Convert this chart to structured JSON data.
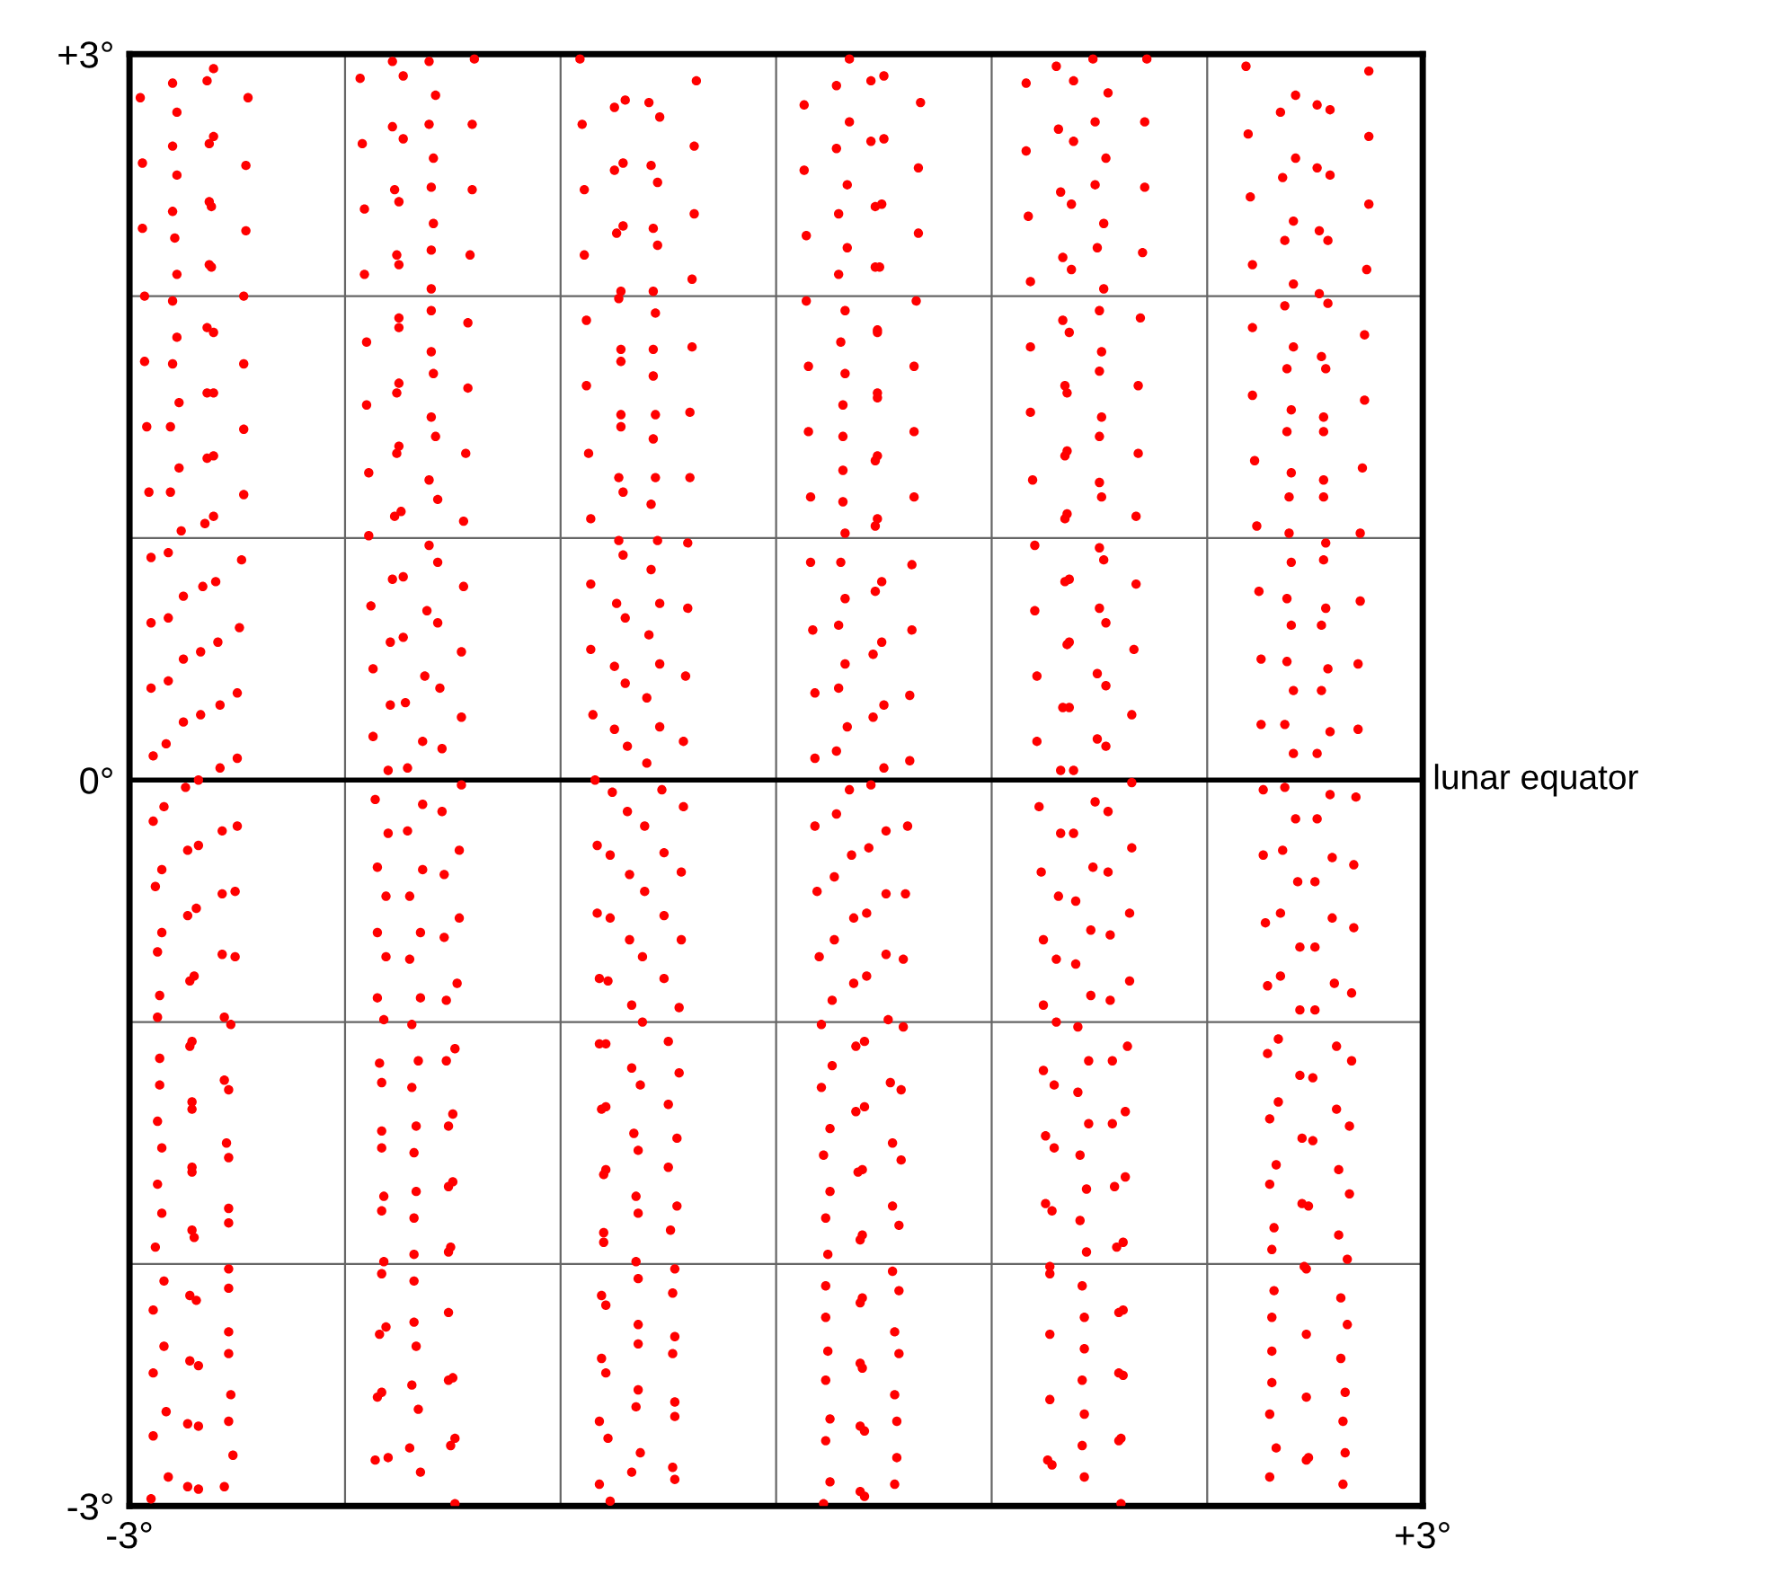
{
  "chart_data": {
    "type": "scatter",
    "marker": "circle",
    "grid": true,
    "xlim": [
      -3,
      3
    ],
    "ylim": [
      -3,
      3
    ],
    "xticks": [
      {
        "value": -3,
        "label": "-3°"
      },
      {
        "value": -2,
        "label": null
      },
      {
        "value": -1,
        "label": null
      },
      {
        "value": 0,
        "label": null
      },
      {
        "value": 1,
        "label": null
      },
      {
        "value": 2,
        "label": null
      },
      {
        "value": 3,
        "label": "+3°"
      }
    ],
    "yticks": [
      {
        "value": -3,
        "label": "-3°"
      },
      {
        "value": -2,
        "label": null
      },
      {
        "value": -1,
        "label": null
      },
      {
        "value": 0,
        "label": "0°"
      },
      {
        "value": 1,
        "label": null
      },
      {
        "value": 2,
        "label": null
      },
      {
        "value": 3,
        "label": "+3°"
      }
    ],
    "ref_lines": [
      {
        "axis": "y",
        "value": 0,
        "label": "lunar equator",
        "color": "#000000"
      }
    ],
    "series": [
      {
        "color": "#ff0000",
        "x": [
          -2.61,
          -2.64,
          -2.8,
          -2.95,
          -2.45,
          -2.78,
          -2.61,
          -2.63,
          -2.8,
          -2.94,
          -2.46,
          -2.78,
          -2.63,
          -2.62,
          -2.8,
          -2.94,
          -2.46,
          -2.79,
          -2.63,
          -2.62,
          -2.78,
          -2.93,
          -2.47,
          -2.8,
          -2.64,
          -2.61,
          -2.78,
          -2.93,
          -2.8,
          -2.47,
          -2.64,
          -2.61,
          -2.77,
          -2.92,
          -2.81,
          -2.47,
          -2.61,
          -2.64,
          -2.77,
          -2.91,
          -2.81,
          -2.47,
          -2.61,
          -2.65,
          -2.76,
          -2.82,
          -2.9,
          -2.48,
          -2.6,
          -2.66,
          -2.75,
          -2.82,
          -2.9,
          -2.49,
          -2.59,
          -2.67,
          -2.75,
          -2.82,
          -2.9,
          -2.5,
          -2.58,
          -2.67,
          -2.75,
          -2.83,
          -2.89,
          -2.5,
          -2.58,
          -2.68,
          -2.74,
          -2.84,
          -2.89,
          -2.5,
          -2.57,
          -2.68,
          -2.73,
          -2.85,
          -2.88,
          -2.57,
          -2.51,
          -2.69,
          -2.73,
          -2.85,
          -2.87,
          -2.57,
          -2.51,
          -2.7,
          -2.72,
          -2.86,
          -2.87,
          -2.56,
          -2.53,
          -2.71,
          -2.72,
          -2.86,
          -2.56,
          -2.86,
          -2.54,
          -2.71,
          -2.71,
          -2.87,
          -2.55,
          -2.85,
          -2.54,
          -2.71,
          -2.71,
          -2.87,
          -2.54,
          -2.85,
          -2.54,
          -2.71,
          -2.7,
          -2.88,
          -2.54,
          -2.84,
          -2.54,
          -2.72,
          -2.69,
          -2.89,
          -2.54,
          -2.84,
          -2.54,
          -2.72,
          -2.68,
          -2.89,
          -2.53,
          -2.83,
          -2.54,
          -2.73,
          -2.68,
          -2.89,
          -2.52,
          -2.82,
          -2.73,
          -2.68,
          -2.56,
          -2.9
        ],
        "values": [
          2.94,
          2.89,
          2.88,
          2.82,
          2.82,
          2.76,
          2.66,
          2.63,
          2.62,
          2.55,
          2.54,
          2.5,
          2.39,
          2.37,
          2.35,
          2.28,
          2.27,
          2.24,
          2.13,
          2.12,
          2.09,
          2.0,
          2.0,
          1.98,
          1.87,
          1.85,
          1.83,
          1.73,
          1.72,
          1.72,
          1.6,
          1.6,
          1.56,
          1.46,
          1.46,
          1.45,
          1.34,
          1.33,
          1.29,
          1.19,
          1.19,
          1.18,
          1.09,
          1.06,
          1.03,
          0.94,
          0.92,
          0.91,
          0.82,
          0.8,
          0.76,
          0.67,
          0.65,
          0.63,
          0.57,
          0.53,
          0.5,
          0.41,
          0.38,
          0.36,
          0.31,
          0.27,
          0.24,
          0.15,
          0.1,
          0.09,
          0.05,
          0.0,
          -0.03,
          -0.11,
          -0.17,
          -0.19,
          -0.21,
          -0.27,
          -0.29,
          -0.37,
          -0.44,
          -0.47,
          -0.46,
          -0.53,
          -0.56,
          -0.63,
          -0.71,
          -0.72,
          -0.73,
          -0.81,
          -0.83,
          -0.89,
          -0.98,
          -0.98,
          -1.01,
          -1.08,
          -1.1,
          -1.15,
          -1.24,
          -1.26,
          -1.28,
          -1.33,
          -1.36,
          -1.41,
          -1.5,
          -1.52,
          -1.56,
          -1.6,
          -1.62,
          -1.67,
          -1.77,
          -1.79,
          -1.83,
          -1.86,
          -1.89,
          -1.93,
          -2.02,
          -2.07,
          -2.1,
          -2.13,
          -2.15,
          -2.19,
          -2.28,
          -2.34,
          -2.37,
          -2.4,
          -2.42,
          -2.45,
          -2.54,
          -2.61,
          -2.65,
          -2.66,
          -2.67,
          -2.71,
          -2.79,
          -2.88,
          -2.92,
          -2.93,
          -2.92,
          -2.97
        ]
      },
      {
        "color": "#ff0000",
        "x": [
          -1.78,
          -1.61,
          -1.4,
          -1.93,
          -1.73,
          -1.58,
          -1.78,
          -1.61,
          -1.41,
          -1.73,
          -1.92,
          -1.59,
          -1.77,
          -1.6,
          -1.41,
          -1.75,
          -1.91,
          -1.59,
          -1.76,
          -1.6,
          -1.42,
          -1.75,
          -1.91,
          -1.6,
          -1.75,
          -1.6,
          -1.43,
          -1.75,
          -1.9,
          -1.6,
          -1.59,
          -1.75,
          -1.76,
          -1.43,
          -1.9,
          -1.6,
          -1.58,
          -1.75,
          -1.76,
          -1.44,
          -1.89,
          -1.61,
          -1.57,
          -1.74,
          -1.77,
          -1.45,
          -1.89,
          -1.61,
          -1.57,
          -1.73,
          -1.78,
          -1.45,
          -1.88,
          -1.62,
          -1.57,
          -1.73,
          -1.79,
          -1.46,
          -1.87,
          -1.63,
          -1.56,
          -1.72,
          -1.79,
          -1.46,
          -1.87,
          -1.64,
          -1.55,
          -1.71,
          -1.8,
          -1.46,
          -1.86,
          -1.64,
          -1.55,
          -1.8,
          -1.71,
          -1.47,
          -1.85,
          -1.64,
          -1.54,
          -1.81,
          -1.7,
          -1.47,
          -1.85,
          -1.65,
          -1.54,
          -1.81,
          -1.7,
          -1.48,
          -1.85,
          -1.65,
          -1.53,
          -1.82,
          -1.69,
          -1.49,
          -1.53,
          -1.66,
          -1.84,
          -1.83,
          -1.69,
          -1.5,
          -1.52,
          -1.67,
          -1.83,
          -1.83,
          -1.68,
          -1.5,
          -1.52,
          -1.67,
          -1.82,
          -1.83,
          -1.68,
          -1.51,
          -1.52,
          -1.68,
          -1.82,
          -1.83,
          -1.68,
          -1.52,
          -1.68,
          -1.81,
          -1.84,
          -1.67,
          -1.5,
          -1.52,
          -1.69,
          -1.83,
          -1.85,
          -1.66,
          -1.49,
          -1.51,
          -1.7,
          -1.8,
          -1.86,
          -1.65,
          -1.49
        ],
        "values": [
          2.97,
          2.97,
          2.98,
          2.9,
          2.91,
          2.83,
          2.7,
          2.71,
          2.71,
          2.65,
          2.63,
          2.57,
          2.44,
          2.45,
          2.44,
          2.39,
          2.36,
          2.3,
          2.17,
          2.19,
          2.17,
          2.13,
          2.09,
          2.03,
          1.91,
          1.94,
          1.89,
          1.87,
          1.81,
          1.77,
          1.68,
          1.64,
          1.6,
          1.62,
          1.55,
          1.5,
          1.42,
          1.38,
          1.35,
          1.35,
          1.27,
          1.24,
          1.16,
          1.11,
          1.09,
          1.07,
          1.01,
          0.97,
          0.9,
          0.84,
          0.83,
          0.8,
          0.72,
          0.7,
          0.65,
          0.59,
          0.57,
          0.53,
          0.46,
          0.43,
          0.38,
          0.32,
          0.31,
          0.26,
          0.18,
          0.16,
          0.13,
          0.05,
          0.04,
          -0.02,
          -0.08,
          -0.1,
          -0.13,
          -0.22,
          -0.21,
          -0.29,
          -0.36,
          -0.37,
          -0.39,
          -0.48,
          -0.48,
          -0.57,
          -0.63,
          -0.63,
          -0.65,
          -0.73,
          -0.74,
          -0.84,
          -0.9,
          -0.9,
          -0.91,
          -0.99,
          -1.01,
          -1.11,
          -1.16,
          -1.16,
          -1.17,
          -1.25,
          -1.27,
          -1.38,
          -1.43,
          -1.43,
          -1.45,
          -1.52,
          -1.54,
          -1.66,
          -1.68,
          -1.7,
          -1.72,
          -1.78,
          -1.81,
          -1.93,
          -1.95,
          -1.96,
          -1.99,
          -2.04,
          -2.07,
          -2.2,
          -2.24,
          -2.26,
          -2.29,
          -2.34,
          -2.47,
          -2.48,
          -2.5,
          -2.53,
          -2.55,
          -2.6,
          -2.72,
          -2.75,
          -2.76,
          -2.8,
          -2.81,
          -2.86,
          -2.99
        ]
      },
      {
        "color": "#ff0000",
        "x": [
          -0.91,
          -0.37,
          -0.7,
          -0.75,
          -0.59,
          -0.54,
          -0.9,
          -0.38,
          -0.71,
          -0.75,
          -0.58,
          -0.55,
          -0.89,
          -0.38,
          -0.71,
          -0.74,
          -0.57,
          -0.55,
          -0.89,
          -0.39,
          -0.72,
          -0.73,
          -0.57,
          -0.56,
          -0.88,
          -0.39,
          -0.72,
          -0.72,
          -0.57,
          -0.57,
          -0.88,
          -0.4,
          -0.72,
          -0.72,
          -0.56,
          -0.57,
          -0.87,
          -0.4,
          -0.73,
          -0.71,
          -0.56,
          -0.58,
          -0.86,
          -0.73,
          -0.55,
          -0.41,
          -0.71,
          -0.58,
          -0.86,
          -0.74,
          -0.54,
          -0.41,
          -0.7,
          -0.59,
          -0.86,
          -0.75,
          -0.54,
          -0.42,
          -0.7,
          -0.6,
          -0.85,
          -0.75,
          -0.54,
          -0.43,
          -0.69,
          -0.6,
          -0.84,
          -0.76,
          -0.53,
          -0.43,
          -0.69,
          -0.61,
          -0.83,
          -0.77,
          -0.52,
          -0.44,
          -0.68,
          -0.61,
          -0.83,
          -0.52,
          -0.77,
          -0.68,
          -0.44,
          -0.62,
          -0.82,
          -0.78,
          -0.52,
          -0.67,
          -0.45,
          -0.62,
          -0.82,
          -0.79,
          -0.5,
          -0.67,
          -0.45,
          -0.63,
          -0.81,
          -0.79,
          -0.5,
          -0.66,
          -0.46,
          -0.64,
          -0.79,
          -0.8,
          -0.5,
          -0.65,
          -0.46,
          -0.64,
          -0.8,
          -0.8,
          -0.49,
          -0.65,
          -0.47,
          -0.64,
          -0.48,
          -0.81,
          -0.79,
          -0.64,
          -0.47,
          -0.64,
          -0.48,
          -0.81,
          -0.79,
          -0.64,
          -0.47,
          -0.65,
          -0.47,
          -0.82,
          -0.78,
          -0.63,
          -0.48,
          -0.67,
          -0.47,
          -0.82,
          -0.77
        ],
        "values": [
          2.98,
          2.89,
          2.81,
          2.78,
          2.8,
          2.74,
          2.71,
          2.62,
          2.55,
          2.52,
          2.54,
          2.47,
          2.44,
          2.34,
          2.29,
          2.26,
          2.28,
          2.21,
          2.17,
          2.07,
          2.02,
          1.99,
          2.02,
          1.93,
          1.9,
          1.79,
          1.78,
          1.73,
          1.78,
          1.67,
          1.63,
          1.52,
          1.51,
          1.46,
          1.51,
          1.41,
          1.35,
          1.25,
          1.25,
          1.19,
          1.25,
          1.14,
          1.08,
          0.99,
          0.99,
          0.98,
          0.93,
          0.87,
          0.81,
          0.73,
          0.73,
          0.71,
          0.67,
          0.6,
          0.54,
          0.47,
          0.48,
          0.43,
          0.4,
          0.34,
          0.27,
          0.21,
          0.22,
          0.16,
          0.14,
          0.07,
          0.0,
          -0.05,
          -0.04,
          -0.11,
          -0.13,
          -0.19,
          -0.27,
          -0.31,
          -0.3,
          -0.38,
          -0.39,
          -0.46,
          -0.55,
          -0.56,
          -0.57,
          -0.66,
          -0.66,
          -0.73,
          -0.82,
          -0.83,
          -0.82,
          -0.93,
          -0.94,
          -1.0,
          -1.09,
          -1.09,
          -1.08,
          -1.19,
          -1.21,
          -1.26,
          -1.36,
          -1.35,
          -1.34,
          -1.46,
          -1.48,
          -1.53,
          -1.61,
          -1.63,
          -1.6,
          -1.72,
          -1.76,
          -1.79,
          -1.87,
          -1.91,
          -1.86,
          -1.99,
          -2.02,
          -2.06,
          -2.12,
          -2.13,
          -2.17,
          -2.25,
          -2.3,
          -2.33,
          -2.37,
          -2.39,
          -2.45,
          -2.52,
          -2.57,
          -2.59,
          -2.63,
          -2.65,
          -2.72,
          -2.78,
          -2.84,
          -2.86,
          -2.89,
          -2.91,
          -2.98
        ]
      },
      {
        "color": "#ff0000",
        "x": [
          0.34,
          0.5,
          0.44,
          0.28,
          0.13,
          0.67,
          0.34,
          0.5,
          0.44,
          0.28,
          0.13,
          0.66,
          0.33,
          0.49,
          0.46,
          0.29,
          0.14,
          0.66,
          0.33,
          0.46,
          0.48,
          0.29,
          0.14,
          0.65,
          0.32,
          0.47,
          0.47,
          0.3,
          0.15,
          0.64,
          0.32,
          0.47,
          0.47,
          0.31,
          0.15,
          0.64,
          0.31,
          0.47,
          0.46,
          0.31,
          0.16,
          0.64,
          0.31,
          0.47,
          0.46,
          0.32,
          0.16,
          0.3,
          0.63,
          0.49,
          0.46,
          0.32,
          0.17,
          0.29,
          0.63,
          0.49,
          0.45,
          0.32,
          0.18,
          0.29,
          0.62,
          0.5,
          0.45,
          0.33,
          0.18,
          0.28,
          0.62,
          0.5,
          0.44,
          0.34,
          0.28,
          0.18,
          0.51,
          0.61,
          0.43,
          0.35,
          0.27,
          0.19,
          0.51,
          0.6,
          0.42,
          0.36,
          0.27,
          0.2,
          0.51,
          0.59,
          0.42,
          0.36,
          0.26,
          0.21,
          0.52,
          0.59,
          0.41,
          0.37,
          0.26,
          0.21,
          0.53,
          0.58,
          0.41,
          0.37,
          0.25,
          0.22,
          0.54,
          0.58,
          0.4,
          0.38,
          0.25,
          0.23,
          0.54,
          0.57,
          0.4,
          0.39,
          0.24,
          0.54,
          0.23,
          0.57,
          0.4,
          0.39,
          0.23,
          0.55,
          0.24,
          0.57,
          0.39,
          0.4,
          0.23,
          0.55,
          0.25,
          0.56,
          0.39,
          0.41,
          0.23,
          0.56,
          0.25,
          0.55,
          0.39,
          0.41,
          0.22
        ],
        "values": [
          2.98,
          2.91,
          2.89,
          2.87,
          2.79,
          2.8,
          2.72,
          2.65,
          2.64,
          2.61,
          2.52,
          2.53,
          2.46,
          2.38,
          2.37,
          2.34,
          2.25,
          2.26,
          2.2,
          2.12,
          2.12,
          2.09,
          1.98,
          1.98,
          1.94,
          1.86,
          1.85,
          1.81,
          1.71,
          1.71,
          1.68,
          1.6,
          1.58,
          1.55,
          1.44,
          1.44,
          1.42,
          1.34,
          1.32,
          1.28,
          1.17,
          1.17,
          1.15,
          1.08,
          1.05,
          1.02,
          0.9,
          0.9,
          0.89,
          0.82,
          0.78,
          0.75,
          0.62,
          0.64,
          0.62,
          0.57,
          0.52,
          0.48,
          0.36,
          0.38,
          0.35,
          0.31,
          0.26,
          0.22,
          0.09,
          0.12,
          0.08,
          0.05,
          -0.02,
          -0.04,
          -0.14,
          -0.19,
          -0.21,
          -0.19,
          -0.28,
          -0.31,
          -0.4,
          -0.46,
          -0.47,
          -0.47,
          -0.55,
          -0.57,
          -0.66,
          -0.73,
          -0.72,
          -0.74,
          -0.81,
          -0.84,
          -0.91,
          -1.01,
          -0.99,
          -1.02,
          -1.08,
          -1.1,
          -1.18,
          -1.27,
          -1.25,
          -1.28,
          -1.35,
          -1.37,
          -1.44,
          -1.55,
          -1.5,
          -1.57,
          -1.61,
          -1.62,
          -1.7,
          -1.81,
          -1.76,
          -1.84,
          -1.88,
          -1.9,
          -1.96,
          -2.03,
          -2.09,
          -2.11,
          -2.14,
          -2.16,
          -2.22,
          -2.28,
          -2.36,
          -2.37,
          -2.41,
          -2.43,
          -2.48,
          -2.54,
          -2.64,
          -2.65,
          -2.67,
          -2.69,
          -2.73,
          -2.8,
          -2.9,
          -2.91,
          -2.94,
          -2.96,
          -2.99
        ]
      },
      {
        "color": "#ff0000",
        "x": [
          1.3,
          1.47,
          1.72,
          1.38,
          1.16,
          1.54,
          1.31,
          1.48,
          1.71,
          1.38,
          1.16,
          1.53,
          1.32,
          1.48,
          1.71,
          1.37,
          1.17,
          1.52,
          1.33,
          1.49,
          1.7,
          1.37,
          1.18,
          1.52,
          1.5,
          1.33,
          1.69,
          1.36,
          1.18,
          1.51,
          1.5,
          1.34,
          1.68,
          1.35,
          1.18,
          1.51,
          1.5,
          1.35,
          1.68,
          1.34,
          1.19,
          1.5,
          1.51,
          1.35,
          1.67,
          1.34,
          1.2,
          1.5,
          1.52,
          1.36,
          1.34,
          1.67,
          1.2,
          1.5,
          1.53,
          1.36,
          1.35,
          1.66,
          1.21,
          1.49,
          1.53,
          1.33,
          1.36,
          1.65,
          1.21,
          1.49,
          1.53,
          1.32,
          1.38,
          1.65,
          1.48,
          1.22,
          1.54,
          1.32,
          1.38,
          1.65,
          1.47,
          1.23,
          1.54,
          1.31,
          1.39,
          1.64,
          1.46,
          1.55,
          1.24,
          1.3,
          1.39,
          1.64,
          1.46,
          1.55,
          1.24,
          1.3,
          1.4,
          1.63,
          1.45,
          1.56,
          1.24,
          1.29,
          1.4,
          1.62,
          1.45,
          1.56,
          1.25,
          1.29,
          1.41,
          1.62,
          1.44,
          1.57,
          1.25,
          1.28,
          1.41,
          1.61,
          1.58,
          1.44,
          1.27,
          1.27,
          1.42,
          1.61,
          1.59,
          1.43,
          1.27,
          1.43,
          1.59,
          1.61,
          1.42,
          1.27,
          1.43,
          1.6,
          1.59,
          1.42,
          1.26,
          1.28,
          1.43,
          1.6
        ],
        "values": [
          2.95,
          2.98,
          2.98,
          2.89,
          2.88,
          2.84,
          2.69,
          2.72,
          2.72,
          2.64,
          2.6,
          2.57,
          2.43,
          2.46,
          2.45,
          2.38,
          2.33,
          2.3,
          2.16,
          2.2,
          2.18,
          2.11,
          2.06,
          2.03,
          1.94,
          1.9,
          1.91,
          1.85,
          1.79,
          1.77,
          1.69,
          1.63,
          1.63,
          1.6,
          1.52,
          1.5,
          1.42,
          1.36,
          1.35,
          1.34,
          1.24,
          1.23,
          1.17,
          1.1,
          1.09,
          1.08,
          0.97,
          0.96,
          0.91,
          0.83,
          0.82,
          0.81,
          0.7,
          0.71,
          0.65,
          0.57,
          0.56,
          0.54,
          0.43,
          0.44,
          0.39,
          0.3,
          0.3,
          0.27,
          0.16,
          0.17,
          0.14,
          0.04,
          0.04,
          -0.01,
          -0.09,
          -0.11,
          -0.13,
          -0.22,
          -0.22,
          -0.28,
          -0.36,
          -0.38,
          -0.38,
          -0.48,
          -0.5,
          -0.55,
          -0.62,
          -0.64,
          -0.66,
          -0.74,
          -0.76,
          -0.83,
          -0.89,
          -0.91,
          -0.93,
          -1.0,
          -1.02,
          -1.1,
          -1.16,
          -1.16,
          -1.2,
          -1.26,
          -1.29,
          -1.37,
          -1.42,
          -1.42,
          -1.47,
          -1.52,
          -1.55,
          -1.64,
          -1.69,
          -1.68,
          -1.75,
          -1.78,
          -1.82,
          -1.91,
          -1.93,
          -1.95,
          -2.01,
          -2.04,
          -2.09,
          -2.19,
          -2.2,
          -2.22,
          -2.29,
          -2.35,
          -2.45,
          -2.46,
          -2.48,
          -2.56,
          -2.62,
          -2.72,
          -2.73,
          -2.75,
          -2.81,
          -2.83,
          -2.88,
          -2.99
        ]
      },
      {
        "color": "#ff0000",
        "x": [
          2.18,
          2.75,
          2.41,
          2.51,
          2.57,
          2.34,
          2.19,
          2.75,
          2.41,
          2.51,
          2.57,
          2.35,
          2.2,
          2.75,
          2.4,
          2.52,
          2.56,
          2.36,
          2.21,
          2.74,
          2.4,
          2.52,
          2.56,
          2.36,
          2.21,
          2.73,
          2.4,
          2.53,
          2.55,
          2.37,
          2.21,
          2.73,
          2.39,
          2.54,
          2.54,
          2.37,
          2.22,
          2.72,
          2.39,
          2.54,
          2.54,
          2.38,
          2.23,
          2.71,
          2.38,
          2.55,
          2.54,
          2.39,
          2.24,
          2.37,
          2.71,
          2.55,
          2.53,
          2.39,
          2.25,
          2.37,
          2.7,
          2.56,
          2.53,
          2.4,
          2.25,
          2.36,
          2.7,
          2.57,
          2.51,
          2.4,
          2.36,
          2.26,
          2.57,
          2.69,
          2.41,
          2.51,
          2.35,
          2.26,
          2.58,
          2.68,
          2.42,
          2.5,
          2.34,
          2.58,
          2.27,
          2.68,
          2.43,
          2.5,
          2.34,
          2.59,
          2.28,
          2.67,
          2.43,
          2.5,
          2.33,
          2.6,
          2.28,
          2.67,
          2.43,
          2.49,
          2.33,
          2.6,
          2.29,
          2.66,
          2.44,
          2.49,
          2.32,
          2.61,
          2.29,
          2.66,
          2.44,
          2.47,
          2.31,
          2.61,
          2.3,
          2.65,
          2.45,
          2.46,
          2.31,
          2.62,
          2.3,
          2.65,
          2.46,
          2.3,
          2.62,
          2.3,
          2.64,
          2.46,
          2.29,
          2.63,
          2.32,
          2.64,
          2.47,
          2.46,
          2.29,
          2.63
        ],
        "values": [
          2.95,
          2.93,
          2.83,
          2.79,
          2.77,
          2.76,
          2.67,
          2.66,
          2.57,
          2.53,
          2.5,
          2.49,
          2.41,
          2.38,
          2.31,
          2.27,
          2.23,
          2.23,
          2.13,
          2.11,
          2.05,
          2.01,
          1.97,
          1.96,
          1.87,
          1.84,
          1.79,
          1.75,
          1.7,
          1.7,
          1.59,
          1.57,
          1.53,
          1.5,
          1.44,
          1.44,
          1.32,
          1.29,
          1.27,
          1.24,
          1.17,
          1.17,
          1.05,
          1.02,
          1.02,
          0.98,
          0.91,
          0.9,
          0.78,
          0.75,
          0.74,
          0.71,
          0.64,
          0.64,
          0.5,
          0.49,
          0.48,
          0.46,
          0.37,
          0.37,
          0.23,
          0.23,
          0.21,
          0.2,
          0.11,
          0.11,
          -0.03,
          -0.04,
          -0.06,
          -0.07,
          -0.16,
          -0.16,
          -0.29,
          -0.31,
          -0.32,
          -0.35,
          -0.42,
          -0.42,
          -0.55,
          -0.57,
          -0.59,
          -0.61,
          -0.69,
          -0.69,
          -0.81,
          -0.84,
          -0.85,
          -0.88,
          -0.95,
          -0.95,
          -1.07,
          -1.1,
          -1.13,
          -1.16,
          -1.22,
          -1.23,
          -1.33,
          -1.36,
          -1.4,
          -1.43,
          -1.48,
          -1.49,
          -1.59,
          -1.61,
          -1.67,
          -1.71,
          -1.75,
          -1.76,
          -1.85,
          -1.88,
          -1.94,
          -1.98,
          -2.01,
          -2.02,
          -2.11,
          -2.14,
          -2.22,
          -2.25,
          -2.29,
          -2.36,
          -2.39,
          -2.49,
          -2.53,
          -2.55,
          -2.62,
          -2.65,
          -2.76,
          -2.78,
          -2.8,
          -2.81,
          -2.88,
          -2.91
        ]
      }
    ]
  }
}
